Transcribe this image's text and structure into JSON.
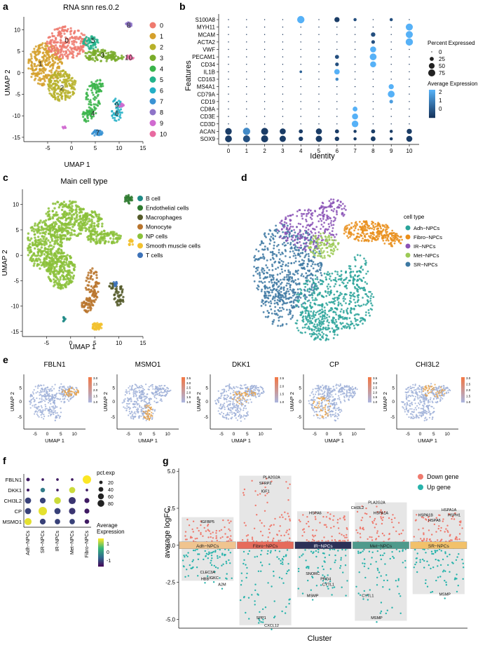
{
  "colors": {
    "cluster": [
      "#ef7a6e",
      "#d5a02c",
      "#b7b12a",
      "#79ac2a",
      "#39b44a",
      "#23b38b",
      "#22afc6",
      "#3a93d4",
      "#8e74c8",
      "#d06ad0",
      "#e86aa0"
    ],
    "cell_type": [
      "#1f8a86",
      "#2e7a2f",
      "#555b2a",
      "#b8742c",
      "#8bc13a",
      "#f2c12e",
      "#3d72b8"
    ],
    "npc": [
      "#2aa39a",
      "#e98e1a",
      "#8a52b6",
      "#9cca56",
      "#3d78a2"
    ],
    "diffexp_down": "#ef7a6e",
    "diffexp_up": "#27b3ab",
    "cluster_band": [
      "#f0c48f",
      "#e66b5b",
      "#2c3057",
      "#4e9a8c",
      "#f2c16a"
    ]
  },
  "chart_data": [
    {
      "panel": "a",
      "type": "scatter",
      "title": "RNA snn res.0.2",
      "xlabel": "UMAP 1",
      "ylabel": "UMAP 2",
      "xlim": [
        -10,
        15
      ],
      "ylim": [
        -16,
        13
      ],
      "xticks": [
        "-5",
        "0",
        "5",
        "10",
        "15"
      ],
      "yticks": [
        "10",
        "5",
        "0",
        "-5",
        "-10",
        "-15"
      ],
      "legend": [
        "0",
        "1",
        "2",
        "3",
        "4",
        "5",
        "6",
        "7",
        "8",
        "9",
        "10"
      ],
      "cluster_labels": [
        {
          "label": "0",
          "x": -1,
          "y": 7.5
        },
        {
          "label": "1",
          "x": -6.5,
          "y": 2
        },
        {
          "label": "2",
          "x": -2,
          "y": -3.5
        },
        {
          "label": "3",
          "x": 6.5,
          "y": 4
        },
        {
          "label": "4",
          "x": 4.5,
          "y": -9.5
        },
        {
          "label": "5",
          "x": 4.5,
          "y": 7.5
        },
        {
          "label": "6",
          "x": 9.5,
          "y": -9.5
        },
        {
          "label": "7",
          "x": 5.5,
          "y": -14
        },
        {
          "label": "8",
          "x": 12,
          "y": 11
        },
        {
          "label": "9",
          "x": 9.5,
          "y": -7.5
        },
        {
          "label": "10",
          "x": 12,
          "y": 3.5
        }
      ]
    },
    {
      "panel": "b",
      "type": "dot",
      "xlabel": "Identity",
      "ylabel": "Features",
      "categories": [
        "0",
        "1",
        "2",
        "3",
        "4",
        "5",
        "6",
        "7",
        "8",
        "9",
        "10"
      ],
      "features": [
        "S100A8",
        "MYH11",
        "MCAM",
        "ACTA2",
        "VWF",
        "PECAM1",
        "CD34",
        "IL1B",
        "CD163",
        "MS4A1",
        "CD79A",
        "CD19",
        "CD8A",
        "CD3E",
        "CD3D",
        "ACAN",
        "SOX9"
      ],
      "size_legend_title": "Percent Expressed",
      "size_legend": [
        "0",
        "25",
        "50",
        "75"
      ],
      "color_legend_title": "Average Expression",
      "color_legend": [
        "2",
        "1",
        "0"
      ],
      "dots": [
        {
          "f": "S100A8",
          "c": "4",
          "p": 80,
          "e": 2.5
        },
        {
          "f": "S100A8",
          "c": "6",
          "p": 40,
          "e": -0.5
        },
        {
          "f": "S100A8",
          "c": "7",
          "p": 15,
          "e": 0
        },
        {
          "f": "S100A8",
          "c": "9",
          "p": 15,
          "e": 0
        },
        {
          "f": "MYH11",
          "c": "10",
          "p": 75,
          "e": 2.5
        },
        {
          "f": "MCAM",
          "c": "8",
          "p": 30,
          "e": 0
        },
        {
          "f": "MCAM",
          "c": "10",
          "p": 75,
          "e": 2.5
        },
        {
          "f": "ACTA2",
          "c": "8",
          "p": 20,
          "e": 0
        },
        {
          "f": "ACTA2",
          "c": "10",
          "p": 80,
          "e": 2.5
        },
        {
          "f": "VWF",
          "c": "8",
          "p": 55,
          "e": 2.5
        },
        {
          "f": "PECAM1",
          "c": "6",
          "p": 25,
          "e": 0
        },
        {
          "f": "PECAM1",
          "c": "8",
          "p": 70,
          "e": 2.5
        },
        {
          "f": "CD34",
          "c": "6",
          "p": 20,
          "e": 0
        },
        {
          "f": "CD34",
          "c": "8",
          "p": 55,
          "e": 2.5
        },
        {
          "f": "IL1B",
          "c": "4",
          "p": 10,
          "e": 0.5
        },
        {
          "f": "IL1B",
          "c": "6",
          "p": 45,
          "e": 2.5
        },
        {
          "f": "CD163",
          "c": "6",
          "p": 15,
          "e": 1.5
        },
        {
          "f": "MS4A1",
          "c": "9",
          "p": 40,
          "e": 2.5
        },
        {
          "f": "CD79A",
          "c": "9",
          "p": 70,
          "e": 2.5
        },
        {
          "f": "CD19",
          "c": "9",
          "p": 20,
          "e": 2
        },
        {
          "f": "CD8A",
          "c": "7",
          "p": 35,
          "e": 2.5
        },
        {
          "f": "CD3E",
          "c": "7",
          "p": 55,
          "e": 2.5
        },
        {
          "f": "CD3D",
          "c": "7",
          "p": 65,
          "e": 2.5
        },
        {
          "f": "ACAN",
          "c": "0",
          "p": 65,
          "e": -0.5
        },
        {
          "f": "ACAN",
          "c": "1",
          "p": 80,
          "e": 1.5
        },
        {
          "f": "ACAN",
          "c": "2",
          "p": 75,
          "e": -0.5
        },
        {
          "f": "ACAN",
          "c": "3",
          "p": 55,
          "e": -0.5
        },
        {
          "f": "ACAN",
          "c": "4",
          "p": 25,
          "e": -0.5
        },
        {
          "f": "ACAN",
          "c": "5",
          "p": 55,
          "e": -0.5
        },
        {
          "f": "ACAN",
          "c": "6",
          "p": 25,
          "e": -0.5
        },
        {
          "f": "ACAN",
          "c": "7",
          "p": 15,
          "e": -0.5
        },
        {
          "f": "ACAN",
          "c": "8",
          "p": 25,
          "e": -0.5
        },
        {
          "f": "ACAN",
          "c": "9",
          "p": 15,
          "e": -0.5
        },
        {
          "f": "ACAN",
          "c": "10",
          "p": 40,
          "e": -0.5
        },
        {
          "f": "SOX9",
          "c": "0",
          "p": 70,
          "e": -0.5
        },
        {
          "f": "SOX9",
          "c": "1",
          "p": 75,
          "e": 0
        },
        {
          "f": "SOX9",
          "c": "2",
          "p": 75,
          "e": -0.5
        },
        {
          "f": "SOX9",
          "c": "3",
          "p": 60,
          "e": -0.5
        },
        {
          "f": "SOX9",
          "c": "4",
          "p": 30,
          "e": -0.5
        },
        {
          "f": "SOX9",
          "c": "5",
          "p": 60,
          "e": -0.5
        },
        {
          "f": "SOX9",
          "c": "6",
          "p": 30,
          "e": -0.5
        },
        {
          "f": "SOX9",
          "c": "7",
          "p": 15,
          "e": -0.5
        },
        {
          "f": "SOX9",
          "c": "8",
          "p": 35,
          "e": -0.5
        },
        {
          "f": "SOX9",
          "c": "9",
          "p": 15,
          "e": -0.5
        },
        {
          "f": "SOX9",
          "c": "10",
          "p": 55,
          "e": -0.5
        }
      ]
    },
    {
      "panel": "c",
      "type": "scatter",
      "title": "Main cell type",
      "xlabel": "UMAP 1",
      "ylabel": "UMAP 2",
      "xlim": [
        -10,
        15
      ],
      "ylim": [
        -16,
        13
      ],
      "xticks": [
        "-5",
        "0",
        "5",
        "10",
        "15"
      ],
      "yticks": [
        "10",
        "5",
        "0",
        "-5",
        "-10",
        "-15"
      ],
      "legend": [
        "B cell",
        "Endothelial cells",
        "Macrophages",
        "Monocyte",
        "NP cells",
        "Smooth muscle cells",
        "T cells"
      ]
    },
    {
      "panel": "d",
      "type": "scatter",
      "legend_title": "cell type",
      "legend": [
        "Adh−NPCs",
        "Fibro−NPCs",
        "IR−NPCs",
        "Met−NPCs",
        "SR−NPCs"
      ]
    },
    {
      "panel": "e",
      "type": "scatter",
      "xlabel": "UMAP 1",
      "ylabel": "UMAP 2",
      "xticks": [
        "-5",
        "0",
        "5",
        "10"
      ],
      "yticks": [
        "5",
        "0",
        "-5"
      ],
      "genes": [
        "FBLN1",
        "MSMO1",
        "DKK1",
        "CP",
        "CHI3L2"
      ],
      "scale": [
        [
          "3.0",
          "2.5",
          "2.0",
          "1.5",
          "1.0"
        ],
        [
          "3.5",
          "3.0",
          "2.5",
          "2.0",
          "1.5",
          "1.0"
        ],
        [
          "2.5",
          "2.0",
          "1.5",
          "1.0"
        ],
        [
          "3.5",
          "3.0",
          "2.5",
          "2.0",
          "1.5",
          "1.0"
        ],
        [
          "3.0",
          "2.5",
          "2.0",
          "1.5",
          "1.0"
        ]
      ]
    },
    {
      "panel": "f",
      "type": "dot",
      "categories": [
        "Adh−NPCs",
        "SR−NPCs",
        "IR−NPCs",
        "Met−NPCs",
        "Fibro−NPCs"
      ],
      "features": [
        "FBLN1",
        "DKK1",
        "CHI3L2",
        "CP",
        "MSMO1"
      ],
      "size_legend_title": "pct.exp",
      "size_legend": [
        "20",
        "40",
        "60",
        "80"
      ],
      "color_legend_title": "Average\nExpression",
      "color_legend": [
        "1",
        "0",
        "-1"
      ],
      "dots": [
        {
          "f": "FBLN1",
          "c": 0,
          "p": 15,
          "e": -0.6
        },
        {
          "f": "FBLN1",
          "c": 1,
          "p": 8,
          "e": -0.6
        },
        {
          "f": "FBLN1",
          "c": 2,
          "p": 8,
          "e": -0.6
        },
        {
          "f": "FBLN1",
          "c": 3,
          "p": 8,
          "e": -0.6
        },
        {
          "f": "FBLN1",
          "c": 4,
          "p": 85,
          "e": 1.6
        },
        {
          "f": "DKK1",
          "c": 0,
          "p": 10,
          "e": -0.6
        },
        {
          "f": "DKK1",
          "c": 1,
          "p": 25,
          "e": 0.2
        },
        {
          "f": "DKK1",
          "c": 2,
          "p": 8,
          "e": -0.6
        },
        {
          "f": "DKK1",
          "c": 3,
          "p": 45,
          "e": 1.4
        },
        {
          "f": "DKK1",
          "c": 4,
          "p": 8,
          "e": -0.6
        },
        {
          "f": "CHI3L2",
          "c": 0,
          "p": 45,
          "e": -0.3
        },
        {
          "f": "CHI3L2",
          "c": 1,
          "p": 40,
          "e": -0.3
        },
        {
          "f": "CHI3L2",
          "c": 2,
          "p": 55,
          "e": 1.4
        },
        {
          "f": "CHI3L2",
          "c": 3,
          "p": 60,
          "e": -0.4
        },
        {
          "f": "CHI3L2",
          "c": 4,
          "p": 30,
          "e": -0.6
        },
        {
          "f": "CP",
          "c": 0,
          "p": 45,
          "e": -0.3
        },
        {
          "f": "CP",
          "c": 1,
          "p": 85,
          "e": 1.5
        },
        {
          "f": "CP",
          "c": 2,
          "p": 45,
          "e": -0.3
        },
        {
          "f": "CP",
          "c": 3,
          "p": 50,
          "e": -0.4
        },
        {
          "f": "CP",
          "c": 4,
          "p": 30,
          "e": -0.6
        },
        {
          "f": "MSMO1",
          "c": 0,
          "p": 60,
          "e": 1.5
        },
        {
          "f": "MSMO1",
          "c": 1,
          "p": 40,
          "e": -0.3
        },
        {
          "f": "MSMO1",
          "c": 2,
          "p": 35,
          "e": -0.3
        },
        {
          "f": "MSMO1",
          "c": 3,
          "p": 35,
          "e": -0.3
        },
        {
          "f": "MSMO1",
          "c": 4,
          "p": 25,
          "e": -0.6
        }
      ]
    },
    {
      "panel": "g",
      "type": "scatter",
      "xlabel": "Cluster",
      "ylabel": "average logFC",
      "ylim": [
        -5.6,
        5.2
      ],
      "yticks": [
        "5.0",
        "2.5",
        "0.0",
        "-2.5",
        "-5.0"
      ],
      "legend": [
        "Down gene",
        "Up gene"
      ],
      "clusters": [
        "Adh−NPCs",
        "Fibro−NPCs",
        "IR−NPCs",
        "Met−NPCs",
        "SR−NPCs"
      ],
      "bar_ranges": [
        [
          -2.4,
          1.9
        ],
        [
          -5.4,
          4.7
        ],
        [
          -3.5,
          2.3
        ],
        [
          -5.1,
          2.9
        ],
        [
          -3.3,
          2.4
        ]
      ],
      "labels": [
        {
          "g": "IGFBP5",
          "c": 0,
          "y": 1.6,
          "dx": 0.5
        },
        {
          "g": "CLEC3A",
          "c": 0,
          "y": -1.8,
          "dx": 0.5
        },
        {
          "g": "HBB",
          "c": 0,
          "y": -2.25,
          "dx": 0.45
        },
        {
          "g": "IGKC",
          "c": 0,
          "y": -2.2,
          "dx": 0.62
        },
        {
          "g": "A2M",
          "c": 0,
          "y": -2.65,
          "dx": 0.78
        },
        {
          "g": "PLA2G2A",
          "c": 1,
          "y": 4.6,
          "dx": 0.62
        },
        {
          "g": "SFRP2",
          "c": 1,
          "y": 4.2,
          "dx": 0.5
        },
        {
          "g": "IGF1",
          "c": 1,
          "y": 3.65,
          "dx": 0.5
        },
        {
          "g": "SPP1",
          "c": 1,
          "y": -4.9,
          "dx": 0.42
        },
        {
          "g": "CXCL12",
          "c": 1,
          "y": -5.4,
          "dx": 0.62
        },
        {
          "g": "HSPA6",
          "c": 2,
          "y": 2.2,
          "dx": 0.35
        },
        {
          "g": "SNORC",
          "c": 2,
          "y": -1.9,
          "dx": 0.3
        },
        {
          "g": "PRG4",
          "c": 2,
          "y": -2.25,
          "dx": 0.55
        },
        {
          "g": "CYTL1",
          "c": 2,
          "y": -2.65,
          "dx": 0.6
        },
        {
          "g": "MSMP",
          "c": 2,
          "y": -3.4,
          "dx": 0.3
        },
        {
          "g": "PLA2G2A",
          "c": 3,
          "y": 2.9,
          "dx": 0.42
        },
        {
          "g": "CHI3L2",
          "c": 3,
          "y": 2.55,
          "dx": 0.05
        },
        {
          "g": "HSPA1A",
          "c": 3,
          "y": 2.2,
          "dx": 0.5
        },
        {
          "g": "CYTL1",
          "c": 3,
          "y": -3.4,
          "dx": 0.25
        },
        {
          "g": "MSMP",
          "c": 3,
          "y": -4.9,
          "dx": 0.42
        },
        {
          "g": "HSPA1A",
          "c": 4,
          "y": 2.4,
          "dx": 0.7
        },
        {
          "g": "HSPA1B",
          "c": 4,
          "y": 2.05,
          "dx": 0.25
        },
        {
          "g": "HSPH1",
          "c": 4,
          "y": 2.05,
          "dx": 0.8
        },
        {
          "g": "HSPA6",
          "c": 4,
          "y": 1.7,
          "dx": 0.42
        },
        {
          "g": "MSMP",
          "c": 4,
          "y": -3.3,
          "dx": 0.62
        }
      ]
    }
  ],
  "panel_letters": [
    "a",
    "b",
    "c",
    "d",
    "e",
    "f",
    "g"
  ]
}
